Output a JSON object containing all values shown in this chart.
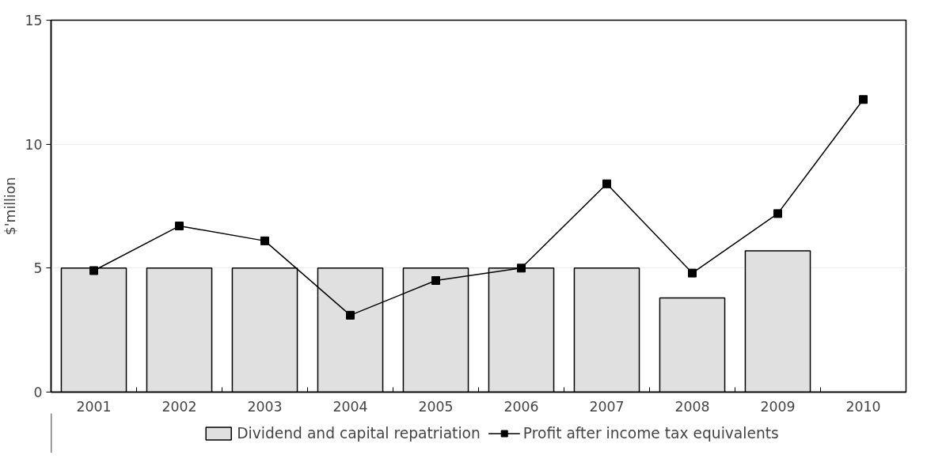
{
  "chart_data": {
    "type": "bar",
    "ylabel": "$'million",
    "categories": [
      "2001",
      "2002",
      "2003",
      "2004",
      "2005",
      "2006",
      "2007",
      "2008",
      "2009",
      "2010"
    ],
    "series": [
      {
        "name": "Dividend and capital repatriation",
        "color": "#e0e0e0",
        "values": [
          5.0,
          5.0,
          5.0,
          5.0,
          5.0,
          5.0,
          5.0,
          3.8,
          5.7,
          null
        ]
      },
      {
        "name": "Profit after income tax equivalents",
        "type": "line",
        "color": "#000000",
        "marker": "square",
        "values": [
          4.9,
          6.7,
          6.1,
          3.1,
          4.5,
          5.0,
          8.4,
          4.8,
          7.2,
          11.8
        ]
      }
    ],
    "ylim": [
      0,
      15
    ],
    "yticks": [
      0,
      5,
      10,
      15
    ],
    "grid": "y",
    "legend": "bottom"
  }
}
